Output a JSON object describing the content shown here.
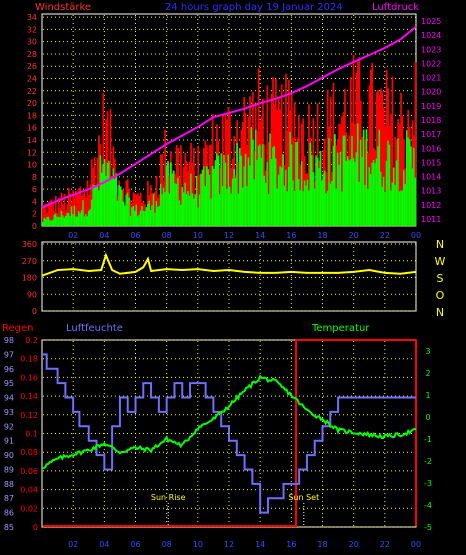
{
  "header": {
    "left_title": "Windstärke",
    "center_title": "24 hours graph day  19 Januar 2024",
    "right_title": "Luftdruck"
  },
  "colors": {
    "background": "#000000",
    "frame": "#ffffff",
    "wind_gust": "#ff0000",
    "wind_avg": "#00ff00",
    "pressure": "#ff00ff",
    "direction": "#ffff00",
    "rain": "#ff0000",
    "humidity": "#6f6fff",
    "temperature": "#00ff00",
    "grid": "#ffff00",
    "marker": "#ffffff",
    "left_axis_top": "#ff3030",
    "right_axis_top": "#ff00ff",
    "humidity_axis": "#9b9bff"
  },
  "chart_data": [
    {
      "type": "line",
      "name": "wind-pressure",
      "x_ticks": [
        "02",
        "04",
        "06",
        "08",
        "10",
        "12",
        "14",
        "16",
        "18",
        "20",
        "22",
        "00"
      ],
      "left_ticks": [
        "0",
        "2",
        "4",
        "6",
        "8",
        "10",
        "12",
        "14",
        "16",
        "18",
        "20",
        "22",
        "24",
        "26",
        "28",
        "30",
        "32",
        "34"
      ],
      "right_ticks": [
        "1011",
        "1012",
        "1013",
        "1014",
        "1015",
        "1016",
        "1017",
        "1018",
        "1019",
        "1020",
        "1021",
        "1022",
        "1023",
        "1024",
        "1025"
      ],
      "ylim_left": [
        0,
        34.5
      ],
      "ylim_right": [
        1010.5,
        1025.5
      ],
      "pressure_x": [
        0,
        1,
        2,
        3,
        4,
        5,
        6,
        7,
        8,
        9,
        10,
        11,
        12,
        13,
        14,
        15,
        16,
        17,
        18,
        19,
        20,
        21,
        22,
        23,
        24
      ],
      "pressure_y": [
        1011.8,
        1012.3,
        1012.7,
        1013.1,
        1013.6,
        1014.2,
        1014.9,
        1015.6,
        1016.3,
        1016.9,
        1017.5,
        1018.2,
        1018.5,
        1018.8,
        1019.2,
        1019.5,
        1019.9,
        1020.4,
        1021.0,
        1021.6,
        1022.1,
        1022.6,
        1023.1,
        1023.7,
        1024.6
      ],
      "gust_x": [
        0,
        1,
        2,
        3,
        4,
        5,
        6,
        7,
        8,
        9,
        10,
        11,
        12,
        13,
        14,
        15,
        16,
        17,
        18,
        19,
        20,
        21,
        22,
        23,
        24
      ],
      "gust_y": [
        4,
        5,
        6,
        9,
        22,
        10,
        6,
        7,
        16,
        14,
        12,
        18,
        20,
        22,
        24,
        22,
        23,
        20,
        21,
        23,
        26,
        25,
        24,
        22,
        26
      ],
      "avg_x": [
        0,
        1,
        2,
        3,
        4,
        5,
        6,
        7,
        8,
        9,
        10,
        11,
        12,
        13,
        14,
        15,
        16,
        17,
        18,
        19,
        20,
        21,
        22,
        23,
        24
      ],
      "avg_y": [
        1,
        2,
        3,
        4,
        12,
        6,
        3,
        4,
        9,
        8,
        7,
        10,
        11,
        13,
        14,
        12,
        13,
        12,
        12,
        13,
        14,
        15,
        13,
        14,
        12
      ]
    },
    {
      "type": "line",
      "name": "wind-direction",
      "left_ticks": [
        "0",
        "90",
        "180",
        "270",
        "360"
      ],
      "right_labels": [
        "N",
        "W",
        "S",
        "O",
        "N"
      ],
      "ylim": [
        0,
        360
      ],
      "x": [
        0,
        1,
        2,
        3,
        3.8,
        4.1,
        4.5,
        5,
        6,
        6.5,
        6.8,
        7,
        8,
        9,
        10,
        11,
        12,
        13,
        14,
        15,
        16,
        17,
        18,
        19,
        20,
        21,
        22,
        23,
        24
      ],
      "y": [
        190,
        220,
        225,
        215,
        220,
        300,
        220,
        200,
        210,
        235,
        280,
        215,
        225,
        220,
        225,
        215,
        220,
        210,
        205,
        205,
        210,
        205,
        205,
        205,
        210,
        220,
        205,
        200,
        210
      ]
    },
    {
      "type": "line",
      "name": "rain-humidity-temperature",
      "titles": {
        "rain": "Regen",
        "humidity": "Luftfeuchte",
        "temperature": "Temperatur"
      },
      "rain_ticks": [
        "0",
        "0.02",
        "0.04",
        "0.06",
        "0.08",
        "0.1",
        "0.12",
        "0.14",
        "0.16",
        "0.18",
        "0.2"
      ],
      "humidity_ticks": [
        "85",
        "86",
        "87",
        "88",
        "89",
        "90",
        "91",
        "92",
        "93",
        "94",
        "95",
        "96",
        "97",
        "98"
      ],
      "temp_ticks": [
        "-5",
        "-4",
        "-3",
        "-2",
        "-1",
        "0",
        "1",
        "2",
        "3"
      ],
      "rain_box": {
        "start": 16.3,
        "end": 24,
        "level": 0.2
      },
      "humidity_x": [
        0,
        0.3,
        1,
        1.5,
        2,
        2.4,
        3,
        3.5,
        4,
        4.5,
        5,
        5.5,
        6,
        6.5,
        7,
        7.5,
        8,
        8.5,
        9,
        9.5,
        10,
        10.5,
        11,
        11.5,
        12,
        12.5,
        13,
        13.5,
        14,
        14.5,
        15,
        15.5,
        16,
        16.5,
        17,
        17.5,
        18,
        18.5,
        19,
        20,
        21,
        22,
        23,
        24
      ],
      "humidity_y": [
        97,
        96,
        95,
        94,
        93,
        92,
        91,
        90,
        89,
        92,
        94,
        93,
        94,
        95,
        94,
        93,
        94,
        95,
        94,
        95,
        95,
        94,
        93,
        92,
        91,
        90,
        89,
        88,
        86,
        87,
        87,
        88,
        88,
        89,
        90,
        91,
        92,
        93,
        94,
        94,
        94,
        94,
        94,
        94
      ],
      "temp_x": [
        0,
        1,
        2,
        3,
        4,
        5,
        6,
        7,
        8,
        9,
        10,
        11,
        12,
        13,
        14,
        15,
        16,
        17,
        18,
        19,
        20,
        21,
        22,
        23,
        24
      ],
      "temp_y": [
        -2.3,
        -1.9,
        -1.7,
        -1.5,
        -1.2,
        -1.6,
        -1.4,
        -1.5,
        -1.0,
        -1.3,
        -0.5,
        -0.1,
        0.5,
        1.2,
        1.8,
        1.6,
        1.0,
        0.3,
        -0.1,
        -0.6,
        -0.7,
        -0.8,
        -0.9,
        -0.8,
        -0.6
      ],
      "temp_ylim": [
        -5,
        3.5
      ],
      "markers": [
        {
          "label": "Sun Rise",
          "x": 8.1
        },
        {
          "label": "Sun Set",
          "x": 16.8
        }
      ]
    }
  ]
}
